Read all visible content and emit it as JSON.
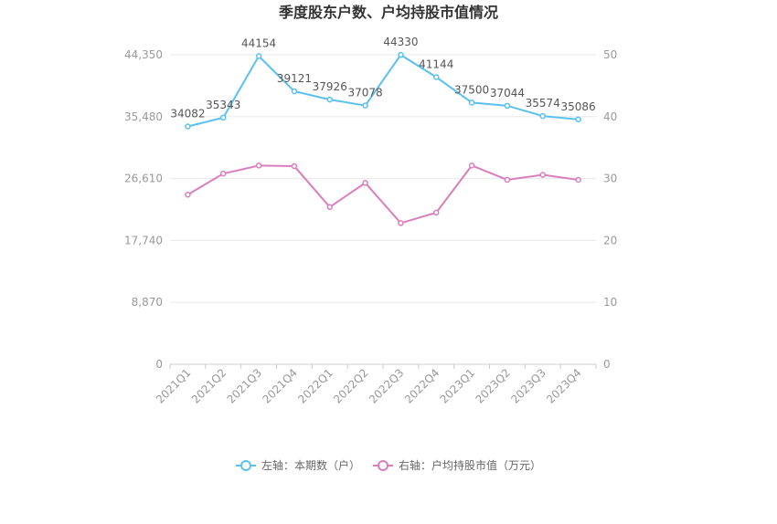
{
  "chart_data": {
    "type": "line",
    "title": "季度股东户数、户均持股市值情况",
    "categories": [
      "2021Q1",
      "2021Q2",
      "2021Q3",
      "2021Q4",
      "2022Q1",
      "2022Q2",
      "2022Q3",
      "2022Q4",
      "2023Q1",
      "2023Q2",
      "2023Q3",
      "2023Q4"
    ],
    "left_axis": {
      "ticks": [
        "0",
        "8,870",
        "17,740",
        "26,610",
        "35,480",
        "44,350"
      ],
      "ylim": [
        0,
        44350
      ]
    },
    "right_axis": {
      "ticks": [
        "0",
        "10",
        "20",
        "30",
        "40",
        "50"
      ],
      "ylim": [
        0,
        50
      ]
    },
    "series": [
      {
        "name": "左轴：本期数（户）",
        "axis": "left",
        "color": "#5bc0f0",
        "values": [
          34082,
          35343,
          44154,
          39121,
          37926,
          37078,
          44330,
          41144,
          37500,
          37044,
          35574,
          35086
        ],
        "labels": [
          "34082",
          "35343",
          "44154",
          "39121",
          "37926",
          "37078",
          "44330",
          "41144",
          "37500",
          "37044",
          "35574",
          "35086"
        ]
      },
      {
        "name": "右轴：户均持股市值（万元）",
        "axis": "right",
        "color": "#d97ebd",
        "values": [
          27.4,
          30.8,
          32.1,
          32.0,
          25.4,
          29.3,
          22.8,
          24.5,
          32.1,
          29.8,
          30.6,
          29.8
        ]
      }
    ],
    "grid": true,
    "legend_position": "bottom"
  }
}
